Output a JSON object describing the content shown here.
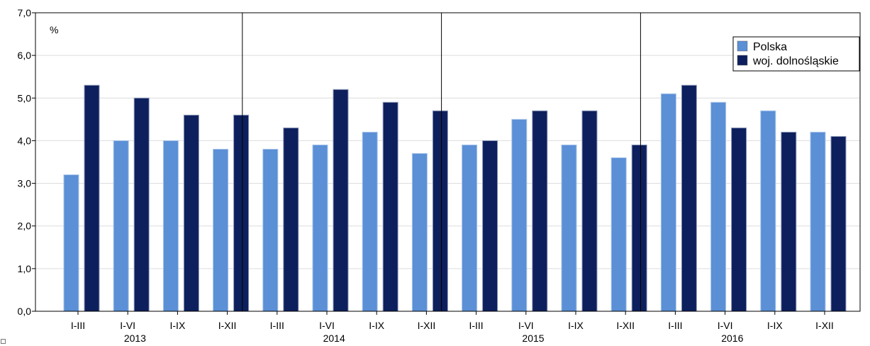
{
  "chart_data": {
    "type": "bar",
    "unit_label": "%",
    "ylim": [
      0,
      7
    ],
    "yticks": [
      "0,0",
      "1,0",
      "2,0",
      "3,0",
      "4,0",
      "5,0",
      "6,0",
      "7,0"
    ],
    "groups": [
      "2013",
      "2014",
      "2015",
      "2016"
    ],
    "categories": [
      "I-III",
      "I-VI",
      "I-IX",
      "I-XII",
      "I-III",
      "I-VI",
      "I-IX",
      "I-XII",
      "I-III",
      "I-VI",
      "I-IX",
      "I-XII",
      "I-III",
      "I-VI",
      "I-IX",
      "I-XII"
    ],
    "series": [
      {
        "name": "Polska",
        "color": "#5b8fd6",
        "values": [
          3.2,
          4.0,
          4.0,
          3.8,
          3.8,
          3.9,
          4.2,
          3.7,
          3.9,
          4.5,
          3.9,
          3.6,
          5.1,
          4.9,
          4.7,
          4.2
        ]
      },
      {
        "name": "woj. dolnośląskie",
        "color": "#0d1f5c",
        "values": [
          5.3,
          5.0,
          4.6,
          4.6,
          4.3,
          5.2,
          4.9,
          4.7,
          4.0,
          4.7,
          4.7,
          3.9,
          5.3,
          4.3,
          4.2,
          4.1
        ]
      }
    ],
    "grid": true,
    "legend_position": "top-right"
  }
}
